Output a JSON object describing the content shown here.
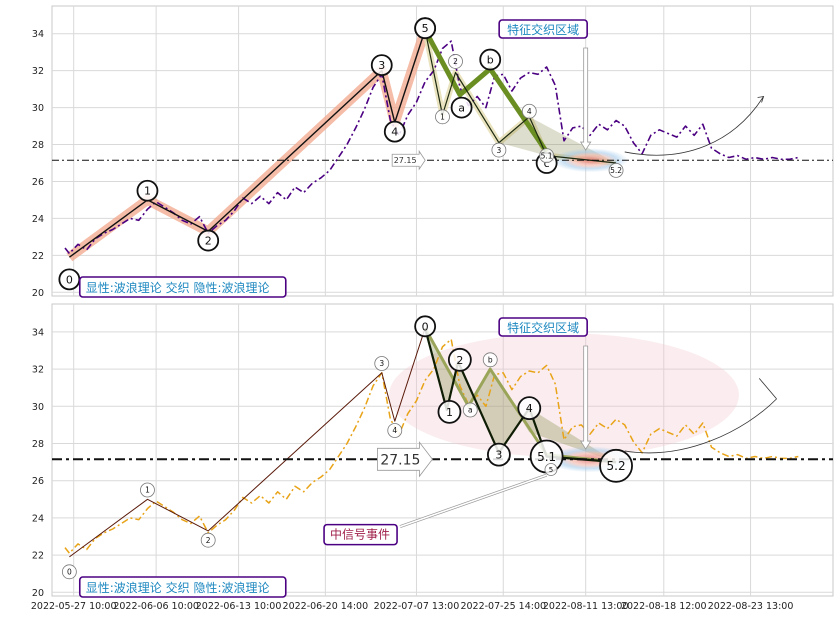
{
  "chart_data": [
    {
      "type": "line",
      "panel": "top",
      "title": "",
      "xlabel": "",
      "ylabel": "",
      "ylim": [
        19.8,
        35.5
      ],
      "y_ticks": [
        "20",
        "22",
        "24",
        "26",
        "28",
        "30",
        "32",
        "34"
      ],
      "grid": true,
      "price_series": {
        "color": "#4b0082",
        "style": "dash-dot",
        "x": [
          1.5,
          2,
          3,
          4,
          5,
          6,
          7,
          8,
          9,
          10,
          11,
          12,
          13,
          14,
          15,
          16,
          17,
          18,
          19,
          20,
          21,
          22,
          23,
          24,
          25,
          26,
          27,
          28,
          29,
          30,
          31,
          32,
          33,
          34,
          35,
          36,
          37,
          38,
          39,
          40,
          41,
          42,
          43,
          44,
          45,
          46,
          47,
          48,
          49,
          50,
          51,
          52,
          53,
          54,
          55,
          56,
          57,
          58,
          59,
          60,
          61,
          62,
          63,
          64,
          65,
          66,
          67,
          68,
          69,
          70,
          71,
          72,
          73,
          74,
          75,
          76,
          77,
          78,
          79,
          80,
          81,
          82,
          83,
          84,
          85,
          86
        ],
        "y": [
          22.4,
          22.1,
          22.6,
          22.3,
          22.9,
          23.2,
          23.4,
          23.7,
          24.0,
          23.9,
          24.5,
          24.9,
          24.6,
          24.3,
          23.9,
          23.7,
          24.1,
          23.2,
          23.6,
          23.9,
          24.4,
          25.1,
          24.8,
          25.2,
          24.8,
          25.4,
          25.0,
          25.7,
          25.4,
          25.9,
          26.2,
          26.6,
          27.3,
          28.0,
          28.9,
          29.9,
          31.1,
          31.8,
          29.3,
          28.5,
          29.6,
          30.3,
          31.4,
          32.0,
          33.2,
          33.6,
          31.1,
          30.1,
          30.6,
          30.0,
          31.7,
          31.8,
          30.9,
          31.6,
          31.9,
          31.8,
          32.2,
          31.2,
          28.2,
          28.9,
          29.0,
          28.5,
          29.1,
          28.8,
          29.3,
          29.0,
          28.1,
          27.5,
          28.5,
          28.8,
          28.6,
          28.4,
          29.0,
          28.5,
          29.1,
          27.8,
          27.5,
          27.3,
          27.4,
          27.2,
          27.3,
          27.2,
          27.3,
          27.2,
          27.2,
          27.3
        ]
      },
      "wave_points": {
        "labels": [
          "0",
          "1",
          "2",
          "3",
          "4",
          "5"
        ],
        "x": [
          2,
          11,
          18,
          38,
          39.5,
          43
        ],
        "y": [
          21.9,
          25.0,
          23.3,
          32.0,
          29.2,
          34.2
        ]
      },
      "abc_points": {
        "labels": [
          "5",
          "a",
          "b",
          "c"
        ],
        "x": [
          43,
          47,
          50.5,
          57
        ],
        "y": [
          34.2,
          30.7,
          32.1,
          27.6
        ]
      },
      "sub_wave_points": {
        "labels": [
          "1",
          "2",
          "3",
          "4",
          "5.1",
          "5.2"
        ],
        "x": [
          45,
          46.5,
          51.5,
          55,
          57,
          65
        ],
        "y": [
          29.6,
          31.9,
          28.1,
          29.5,
          27.4,
          27.0
        ]
      },
      "horizontal_line": {
        "value": 27.15,
        "label": "27.15"
      },
      "annotations": {
        "legend_box": "显性:波浪理论 交织 隐性:波浪理论",
        "zone_box": "特征交织区域"
      }
    },
    {
      "type": "line",
      "panel": "bottom",
      "title": "",
      "xlabel": "",
      "ylabel": "",
      "ylim": [
        19.8,
        35.5
      ],
      "y_ticks": [
        "20",
        "22",
        "24",
        "26",
        "28",
        "30",
        "32",
        "34"
      ],
      "grid": true,
      "x_tick_labels": [
        "2022-05-27 10:00",
        "2022-06-06 10:00",
        "2022-06-13 10:00",
        "2022-06-20 14:00",
        "2022-07-07 13:00",
        "2022-07-25 14:00",
        "2022-08-11 13:00",
        "2022-08-18 12:00",
        "2022-08-23 13:00"
      ],
      "price_series": {
        "color": "#e8a317",
        "style": "dash-dot",
        "x": [
          1.5,
          2,
          3,
          4,
          5,
          6,
          7,
          8,
          9,
          10,
          11,
          12,
          13,
          14,
          15,
          16,
          17,
          18,
          19,
          20,
          21,
          22,
          23,
          24,
          25,
          26,
          27,
          28,
          29,
          30,
          31,
          32,
          33,
          34,
          35,
          36,
          37,
          38,
          39,
          40,
          41,
          42,
          43,
          44,
          45,
          46,
          47,
          48,
          49,
          50,
          51,
          52,
          53,
          54,
          55,
          56,
          57,
          58,
          59,
          60,
          61,
          62,
          63,
          64,
          65,
          66,
          67,
          68,
          69,
          70,
          71,
          72,
          73,
          74,
          75,
          76,
          77,
          78,
          79,
          80,
          81,
          82,
          83,
          84,
          85,
          86
        ],
        "y": [
          22.4,
          22.1,
          22.6,
          22.3,
          22.9,
          23.2,
          23.4,
          23.7,
          24.0,
          23.9,
          24.5,
          24.9,
          24.6,
          24.3,
          23.9,
          23.7,
          24.1,
          23.2,
          23.6,
          23.9,
          24.4,
          25.1,
          24.8,
          25.2,
          24.8,
          25.4,
          25.0,
          25.7,
          25.4,
          25.9,
          26.2,
          26.6,
          27.3,
          28.0,
          28.9,
          29.9,
          31.1,
          31.8,
          29.3,
          28.5,
          29.6,
          30.3,
          31.4,
          32.0,
          33.2,
          33.6,
          31.1,
          30.1,
          30.6,
          30.0,
          31.7,
          31.8,
          30.9,
          31.6,
          31.9,
          31.8,
          32.2,
          31.2,
          28.2,
          28.9,
          29.0,
          28.5,
          29.1,
          28.8,
          29.3,
          29.0,
          28.1,
          27.5,
          28.5,
          28.8,
          28.6,
          28.4,
          29.0,
          28.5,
          29.1,
          27.8,
          27.5,
          27.3,
          27.4,
          27.2,
          27.3,
          27.2,
          27.3,
          27.2,
          27.2,
          27.3
        ]
      },
      "wave_points": {
        "labels": [
          "0",
          "1",
          "2",
          "3",
          "4",
          "0"
        ],
        "x": [
          2,
          11,
          18,
          38,
          39.5,
          43
        ],
        "y": [
          21.9,
          25.0,
          23.3,
          31.8,
          29.2,
          34.2
        ]
      },
      "abc_points": {
        "labels": [
          "a",
          "b"
        ],
        "x": [
          48,
          50.5
        ],
        "y": [
          30.0,
          32.0
        ]
      },
      "sub_wave_points": {
        "labels": [
          "1",
          "2",
          "3",
          "4",
          "5.1",
          "5.2"
        ],
        "x": [
          45.5,
          46.8,
          51.5,
          55,
          57,
          65
        ],
        "y": [
          29.8,
          32.4,
          27.5,
          29.9,
          27.3,
          27.0
        ]
      },
      "horizontal_line": {
        "value": 27.15,
        "label": "27.15"
      },
      "annotations": {
        "legend_box": "显性:波浪理论 交织 隐性:波浪理论",
        "zone_box": "特征交织区域",
        "signal_box": "中信号事件"
      }
    }
  ]
}
